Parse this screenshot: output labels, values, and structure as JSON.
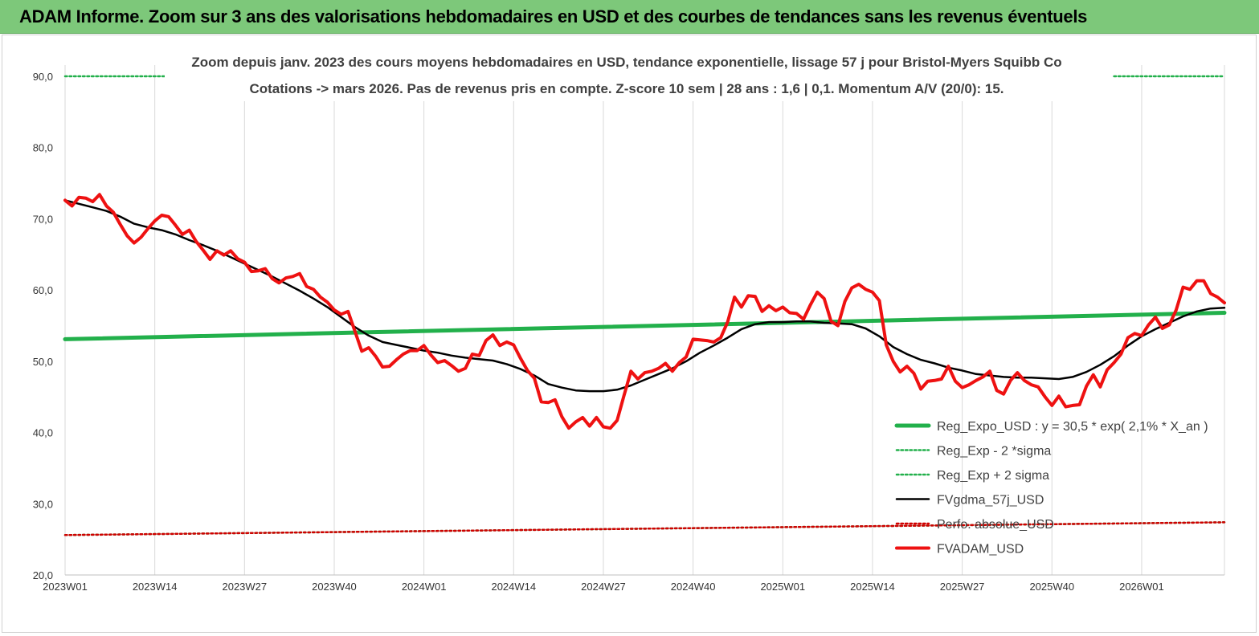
{
  "banner": {
    "title": "ADAM Informe. Zoom sur 3 ans des valorisations hebdomadaires en USD et des courbes de tendances sans les revenus éventuels"
  },
  "chart_data": {
    "type": "line",
    "subtitle_line1": "Zoom depuis janv. 2023 des cours moyens hebdomadaires en USD, tendance exponentielle, lissage 57 j pour Bristol-Myers Squibb Co",
    "subtitle_line2": "Cotations -> mars 2026. Pas de revenus pris en compte. Z-score 10 sem | 28 ans : 1,6 | 0,1. Momentum A/V (20/0): 15.",
    "x_range_weeks": [
      0,
      168
    ],
    "x_ticks": [
      {
        "week": 0,
        "label": "2023W01"
      },
      {
        "week": 13,
        "label": "2023W14"
      },
      {
        "week": 26,
        "label": "2023W27"
      },
      {
        "week": 39,
        "label": "2023W40"
      },
      {
        "week": 52,
        "label": "2024W01"
      },
      {
        "week": 65,
        "label": "2024W14"
      },
      {
        "week": 78,
        "label": "2024W27"
      },
      {
        "week": 91,
        "label": "2024W40"
      },
      {
        "week": 104,
        "label": "2025W01"
      },
      {
        "week": 117,
        "label": "2025W14"
      },
      {
        "week": 130,
        "label": "2025W27"
      },
      {
        "week": 143,
        "label": "2025W40"
      },
      {
        "week": 156,
        "label": "2026W01"
      }
    ],
    "ylim": [
      20,
      90
    ],
    "y_ticks": [
      {
        "value": 20,
        "label": "20,0"
      },
      {
        "value": 30,
        "label": "30,0"
      },
      {
        "value": 40,
        "label": "40,0"
      },
      {
        "value": 50,
        "label": "50,0"
      },
      {
        "value": 60,
        "label": "60,0"
      },
      {
        "value": 70,
        "label": "70,0"
      },
      {
        "value": 80,
        "label": "80,0"
      },
      {
        "value": 90,
        "label": "90,0"
      }
    ],
    "grid": "vertical",
    "legend_position": "bottom-right",
    "series": [
      {
        "name": "Reg_Expo_USD : y = 30,5 * exp( 2,1% *  X_an )",
        "color": "#22b04b",
        "style": "solid-thick",
        "points": [
          [
            0,
            53.1
          ],
          [
            168,
            56.8
          ]
        ]
      },
      {
        "name": "Reg_Exp - 2 *sigma",
        "color": "#22b04b",
        "style": "dotted",
        "points": [
          [
            0,
            25.6
          ],
          [
            168,
            27.4
          ]
        ]
      },
      {
        "name": "Reg_Exp + 2 sigma",
        "color": "#22b04b",
        "style": "dotted",
        "points": [
          [
            0,
            90.0
          ],
          [
            16,
            90.0
          ],
          [
            152,
            90.0
          ],
          [
            168,
            90.0
          ]
        ]
      },
      {
        "name": "FVgdma_57j_USD",
        "color": "#000000",
        "style": "solid",
        "points": [
          [
            0,
            72.6
          ],
          [
            2,
            72.1
          ],
          [
            4,
            71.6
          ],
          [
            6,
            71.1
          ],
          [
            8,
            70.3
          ],
          [
            10,
            69.3
          ],
          [
            12,
            68.8
          ],
          [
            14,
            68.4
          ],
          [
            16,
            67.8
          ],
          [
            18,
            67.0
          ],
          [
            20,
            66.3
          ],
          [
            22,
            65.5
          ],
          [
            24,
            64.6
          ],
          [
            26,
            63.7
          ],
          [
            28,
            62.8
          ],
          [
            30,
            61.9
          ],
          [
            32,
            60.9
          ],
          [
            34,
            59.9
          ],
          [
            36,
            58.8
          ],
          [
            38,
            57.6
          ],
          [
            40,
            56.2
          ],
          [
            42,
            54.8
          ],
          [
            44,
            53.6
          ],
          [
            46,
            52.7
          ],
          [
            48,
            52.3
          ],
          [
            50,
            51.9
          ],
          [
            52,
            51.5
          ],
          [
            54,
            51.2
          ],
          [
            56,
            50.8
          ],
          [
            58,
            50.5
          ],
          [
            60,
            50.3
          ],
          [
            62,
            50.1
          ],
          [
            64,
            49.6
          ],
          [
            66,
            48.9
          ],
          [
            68,
            48.0
          ],
          [
            70,
            46.8
          ],
          [
            72,
            46.3
          ],
          [
            74,
            45.9
          ],
          [
            76,
            45.8
          ],
          [
            78,
            45.8
          ],
          [
            80,
            46.0
          ],
          [
            82,
            46.6
          ],
          [
            84,
            47.4
          ],
          [
            86,
            48.2
          ],
          [
            88,
            49.0
          ],
          [
            90,
            50.0
          ],
          [
            92,
            51.2
          ],
          [
            94,
            52.2
          ],
          [
            96,
            53.3
          ],
          [
            98,
            54.5
          ],
          [
            100,
            55.2
          ],
          [
            102,
            55.5
          ],
          [
            104,
            55.5
          ],
          [
            106,
            55.6
          ],
          [
            108,
            55.6
          ],
          [
            110,
            55.4
          ],
          [
            112,
            55.3
          ],
          [
            114,
            55.2
          ],
          [
            116,
            54.6
          ],
          [
            118,
            53.5
          ],
          [
            120,
            52.0
          ],
          [
            122,
            51.0
          ],
          [
            124,
            50.2
          ],
          [
            126,
            49.7
          ],
          [
            128,
            49.1
          ],
          [
            130,
            48.7
          ],
          [
            132,
            48.2
          ],
          [
            134,
            48.0
          ],
          [
            136,
            47.8
          ],
          [
            138,
            47.7
          ],
          [
            140,
            47.7
          ],
          [
            142,
            47.6
          ],
          [
            144,
            47.5
          ],
          [
            146,
            47.8
          ],
          [
            148,
            48.5
          ],
          [
            150,
            49.5
          ],
          [
            152,
            50.7
          ],
          [
            154,
            52.2
          ],
          [
            156,
            53.5
          ],
          [
            158,
            54.5
          ],
          [
            160,
            55.4
          ],
          [
            162,
            56.3
          ],
          [
            164,
            57.0
          ],
          [
            166,
            57.4
          ],
          [
            168,
            57.5
          ]
        ]
      },
      {
        "name": "Perfo. absolue_USD",
        "color": "#d00000",
        "style": "dotted",
        "points": [
          [
            0,
            25.6
          ],
          [
            168,
            27.4
          ]
        ]
      },
      {
        "name": "FVADAM_USD",
        "color": "#ee1111",
        "style": "solid-thick",
        "points": [
          [
            0,
            72.6
          ],
          [
            1,
            71.8
          ],
          [
            2,
            73.0
          ],
          [
            3,
            72.9
          ],
          [
            4,
            72.4
          ],
          [
            5,
            73.4
          ],
          [
            6,
            71.8
          ],
          [
            7,
            70.9
          ],
          [
            8,
            69.2
          ],
          [
            9,
            67.6
          ],
          [
            10,
            66.6
          ],
          [
            11,
            67.4
          ],
          [
            12,
            68.6
          ],
          [
            13,
            69.7
          ],
          [
            14,
            70.5
          ],
          [
            15,
            70.3
          ],
          [
            16,
            69.1
          ],
          [
            17,
            67.8
          ],
          [
            18,
            68.4
          ],
          [
            19,
            66.8
          ],
          [
            20,
            65.6
          ],
          [
            21,
            64.3
          ],
          [
            22,
            65.5
          ],
          [
            23,
            64.9
          ],
          [
            24,
            65.5
          ],
          [
            25,
            64.4
          ],
          [
            26,
            63.9
          ],
          [
            27,
            62.6
          ],
          [
            28,
            62.7
          ],
          [
            29,
            63.0
          ],
          [
            30,
            61.6
          ],
          [
            31,
            61.0
          ],
          [
            32,
            61.7
          ],
          [
            33,
            61.9
          ],
          [
            34,
            62.3
          ],
          [
            35,
            60.5
          ],
          [
            36,
            60.1
          ],
          [
            37,
            59.0
          ],
          [
            38,
            58.3
          ],
          [
            39,
            57.2
          ],
          [
            40,
            56.6
          ],
          [
            41,
            57.0
          ],
          [
            42,
            54.2
          ],
          [
            43,
            51.4
          ],
          [
            44,
            51.9
          ],
          [
            45,
            50.7
          ],
          [
            46,
            49.2
          ],
          [
            47,
            49.3
          ],
          [
            48,
            50.2
          ],
          [
            49,
            51.0
          ],
          [
            50,
            51.5
          ],
          [
            51,
            51.5
          ],
          [
            52,
            52.2
          ],
          [
            53,
            50.9
          ],
          [
            54,
            49.8
          ],
          [
            55,
            50.1
          ],
          [
            56,
            49.4
          ],
          [
            57,
            48.6
          ],
          [
            58,
            49.0
          ],
          [
            59,
            51.0
          ],
          [
            60,
            50.8
          ],
          [
            61,
            52.9
          ],
          [
            62,
            53.7
          ],
          [
            63,
            52.2
          ],
          [
            64,
            52.7
          ],
          [
            65,
            52.3
          ],
          [
            66,
            50.4
          ],
          [
            67,
            48.7
          ],
          [
            68,
            47.6
          ],
          [
            69,
            44.3
          ],
          [
            70,
            44.2
          ],
          [
            71,
            44.6
          ],
          [
            72,
            42.2
          ],
          [
            73,
            40.6
          ],
          [
            74,
            41.5
          ],
          [
            75,
            42.1
          ],
          [
            76,
            40.9
          ],
          [
            77,
            42.1
          ],
          [
            78,
            40.8
          ],
          [
            79,
            40.6
          ],
          [
            80,
            41.7
          ],
          [
            81,
            45.2
          ],
          [
            82,
            48.6
          ],
          [
            83,
            47.5
          ],
          [
            84,
            48.4
          ],
          [
            85,
            48.6
          ],
          [
            86,
            49.0
          ],
          [
            87,
            49.7
          ],
          [
            88,
            48.6
          ],
          [
            89,
            49.8
          ],
          [
            90,
            50.6
          ],
          [
            91,
            53.1
          ],
          [
            92,
            53.0
          ],
          [
            93,
            52.9
          ],
          [
            94,
            52.7
          ],
          [
            95,
            53.3
          ],
          [
            96,
            55.5
          ],
          [
            97,
            59.0
          ],
          [
            98,
            57.6
          ],
          [
            99,
            59.2
          ],
          [
            100,
            59.1
          ],
          [
            101,
            57.0
          ],
          [
            102,
            57.8
          ],
          [
            103,
            57.1
          ],
          [
            104,
            57.6
          ],
          [
            105,
            56.8
          ],
          [
            106,
            56.7
          ],
          [
            107,
            55.9
          ],
          [
            108,
            57.9
          ],
          [
            109,
            59.7
          ],
          [
            110,
            58.8
          ],
          [
            111,
            55.6
          ],
          [
            112,
            55.0
          ],
          [
            113,
            58.4
          ],
          [
            114,
            60.3
          ],
          [
            115,
            60.8
          ],
          [
            116,
            60.1
          ],
          [
            117,
            59.7
          ],
          [
            118,
            58.5
          ],
          [
            119,
            52.3
          ],
          [
            120,
            50.0
          ],
          [
            121,
            48.5
          ],
          [
            122,
            49.3
          ],
          [
            123,
            48.3
          ],
          [
            124,
            46.1
          ],
          [
            125,
            47.2
          ],
          [
            126,
            47.3
          ],
          [
            127,
            47.5
          ],
          [
            128,
            49.3
          ],
          [
            129,
            47.2
          ],
          [
            130,
            46.3
          ],
          [
            131,
            46.7
          ],
          [
            132,
            47.3
          ],
          [
            133,
            47.8
          ],
          [
            134,
            48.6
          ],
          [
            135,
            45.9
          ],
          [
            136,
            45.4
          ],
          [
            137,
            47.3
          ],
          [
            138,
            48.4
          ],
          [
            139,
            47.3
          ],
          [
            140,
            46.7
          ],
          [
            141,
            46.4
          ],
          [
            142,
            45.0
          ],
          [
            143,
            43.8
          ],
          [
            144,
            45.1
          ],
          [
            145,
            43.6
          ],
          [
            146,
            43.8
          ],
          [
            147,
            43.9
          ],
          [
            148,
            46.5
          ],
          [
            149,
            48.1
          ],
          [
            150,
            46.4
          ],
          [
            151,
            48.8
          ],
          [
            152,
            49.8
          ],
          [
            153,
            51.0
          ],
          [
            154,
            53.3
          ],
          [
            155,
            53.9
          ],
          [
            156,
            53.6
          ],
          [
            157,
            55.1
          ],
          [
            158,
            56.2
          ],
          [
            159,
            54.6
          ],
          [
            160,
            55.1
          ],
          [
            161,
            57.2
          ],
          [
            162,
            60.4
          ],
          [
            163,
            60.1
          ],
          [
            164,
            61.3
          ],
          [
            165,
            61.3
          ],
          [
            166,
            59.5
          ],
          [
            167,
            59.0
          ],
          [
            168,
            58.2
          ]
        ]
      }
    ]
  }
}
